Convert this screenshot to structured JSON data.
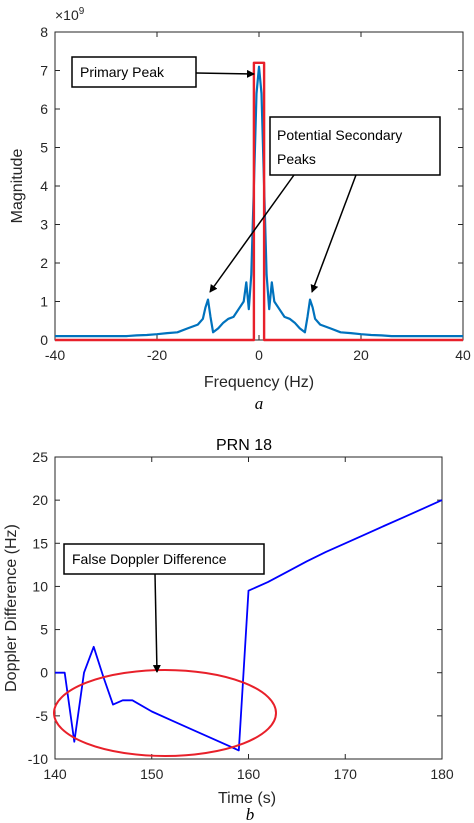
{
  "chart_data": [
    {
      "type": "line",
      "caption": "a",
      "xlabel": "Frequency (Hz)",
      "ylabel": "Magnitude",
      "y_exponent": "×10",
      "y_exponent_power": "9",
      "xlim": [
        -40,
        40
      ],
      "ylim": [
        0,
        8
      ],
      "xticks": [
        "-40",
        "-20",
        "0",
        "20",
        "40"
      ],
      "yticks": [
        "0",
        "1",
        "2",
        "3",
        "4",
        "5",
        "6",
        "7",
        "8"
      ],
      "grid": false,
      "colors": {
        "spectrum": "#0072BD",
        "window": "#E8202A"
      },
      "series": [
        {
          "x": [
            -40,
            -38,
            -36,
            -34,
            -32,
            -30,
            -28,
            -26,
            -24,
            -22,
            -20,
            -18,
            -16,
            -14,
            -13,
            -12,
            -11,
            -10.5,
            -10,
            -9.5,
            -9,
            -8,
            -7,
            -6,
            -5,
            -4,
            -3,
            -2.5,
            -2,
            -1.5,
            -1,
            -0.5,
            0,
            0.5,
            1,
            1.5,
            2,
            2.5,
            3,
            4,
            5,
            6,
            7,
            8,
            9,
            9.5,
            10,
            10.5,
            11,
            12,
            13,
            14,
            16,
            18,
            20,
            22,
            24,
            26,
            28,
            30,
            32,
            34,
            36,
            38,
            40
          ],
          "values": [
            0.1,
            0.1,
            0.1,
            0.1,
            0.1,
            0.1,
            0.1,
            0.1,
            0.12,
            0.13,
            0.15,
            0.18,
            0.2,
            0.3,
            0.35,
            0.4,
            0.55,
            0.85,
            1.05,
            0.6,
            0.2,
            0.3,
            0.45,
            0.55,
            0.6,
            0.8,
            1.0,
            1.5,
            0.8,
            1.7,
            4.0,
            6.4,
            7.1,
            6.4,
            4.0,
            1.7,
            0.8,
            1.5,
            1.0,
            0.8,
            0.6,
            0.55,
            0.45,
            0.3,
            0.2,
            0.6,
            1.05,
            0.85,
            0.55,
            0.4,
            0.35,
            0.3,
            0.2,
            0.18,
            0.15,
            0.13,
            0.12,
            0.1,
            0.1,
            0.1,
            0.1,
            0.1,
            0.1,
            0.1,
            0.1
          ]
        },
        {
          "x": [
            -40,
            -1,
            -1,
            1,
            1,
            40
          ],
          "values": [
            0,
            0,
            7.2,
            7.2,
            0,
            0
          ]
        }
      ],
      "annotations": [
        {
          "text": "Primary Peak"
        },
        {
          "text_lines": [
            "Potential Secondary",
            "Peaks"
          ]
        }
      ]
    },
    {
      "type": "line",
      "title": "PRN 18",
      "caption": "b",
      "xlabel": "Time (s)",
      "ylabel": "Doppler Difference (Hz)",
      "xlim": [
        140,
        180
      ],
      "ylim": [
        -10,
        25
      ],
      "xticks": [
        "140",
        "150",
        "160",
        "170",
        "180"
      ],
      "yticks": [
        "-10",
        "-5",
        "0",
        "5",
        "10",
        "15",
        "20",
        "25"
      ],
      "grid": false,
      "colors": {
        "line": "#0000FF",
        "ellipse": "#E8202A"
      },
      "series": [
        {
          "x": [
            140,
            141,
            142,
            143,
            144,
            145,
            146,
            147,
            148,
            150,
            152,
            154,
            156,
            158,
            159,
            160,
            162,
            164,
            166,
            168,
            170,
            172,
            174,
            176,
            178,
            180
          ],
          "values": [
            0,
            0,
            -8,
            0,
            3,
            -0.5,
            -3.7,
            -3.2,
            -3.2,
            -4.5,
            -5.5,
            -6.5,
            -7.5,
            -8.5,
            -9,
            9.5,
            10.5,
            11.7,
            12.9,
            14,
            15,
            16,
            17,
            18,
            19,
            20
          ]
        }
      ],
      "annotations": [
        {
          "text": "False Doppler Difference"
        }
      ]
    }
  ]
}
